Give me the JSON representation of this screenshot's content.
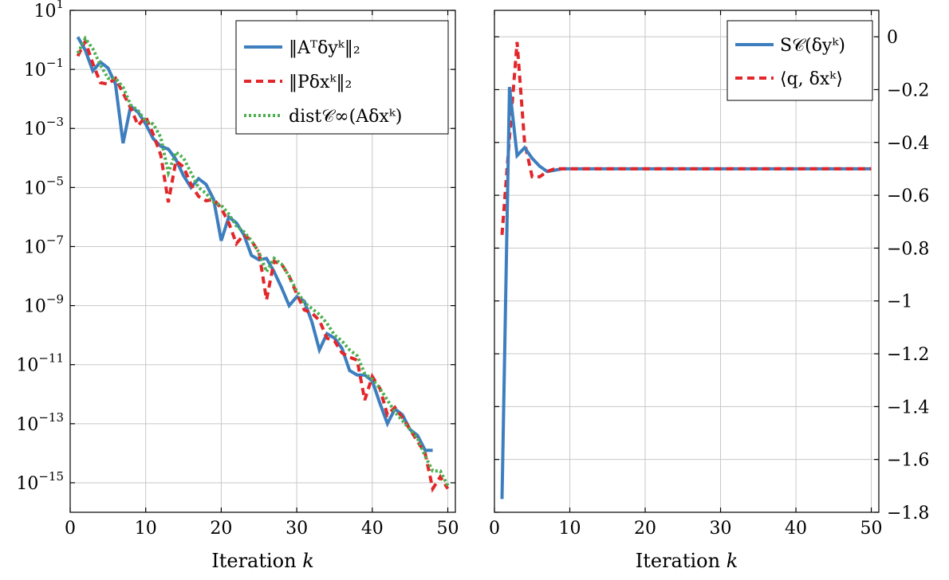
{
  "colors": {
    "blue": "#3d7ebf",
    "red": "#e3262a",
    "green": "#4cb050"
  },
  "chart_data": [
    {
      "type": "line",
      "yscale": "log",
      "xlabel": "Iteration k",
      "xlim": [
        0,
        51
      ],
      "ylim_exp": [
        -16,
        1
      ],
      "x_ticks": [
        0,
        10,
        20,
        30,
        40,
        50
      ],
      "y_tick_exponents": [
        1,
        -1,
        -3,
        -5,
        -7,
        -9,
        -11,
        -13,
        -15
      ],
      "grid": true,
      "legend_position": "top-right",
      "series": [
        {
          "name": "‖Aᵀδyᵏ‖₂",
          "color": "#3d7ebf",
          "dash": "solid",
          "x": [
            1,
            2,
            3,
            4,
            5,
            6,
            7,
            8,
            9,
            10,
            11,
            12,
            13,
            14,
            15,
            16,
            17,
            18,
            19,
            20,
            21,
            22,
            23,
            24,
            25,
            26,
            27,
            28,
            29,
            30,
            31,
            32,
            33,
            34,
            35,
            36,
            37,
            38,
            39,
            40,
            41,
            42,
            43,
            44,
            45,
            46,
            47,
            48
          ],
          "log10_y": [
            0.1,
            -0.35,
            -1.05,
            -0.75,
            -0.95,
            -1.5,
            -3.5,
            -2.25,
            -2.45,
            -2.85,
            -3.35,
            -3.6,
            -3.7,
            -4.05,
            -4.6,
            -5.0,
            -4.7,
            -4.9,
            -5.4,
            -6.8,
            -6.0,
            -6.2,
            -6.6,
            -7.3,
            -7.45,
            -7.4,
            -7.85,
            -8.4,
            -9.0,
            -8.7,
            -8.85,
            -9.55,
            -10.5,
            -9.95,
            -10.1,
            -10.45,
            -11.2,
            -11.35,
            -11.35,
            -11.55,
            -12.3,
            -13.0,
            -12.5,
            -12.7,
            -13.2,
            -13.4,
            -13.9,
            -13.9
          ]
        },
        {
          "name": "‖Pδxᵏ‖₂",
          "color": "#e3262a",
          "dash": "dashed",
          "x": [
            1,
            2,
            3,
            4,
            5,
            6,
            7,
            8,
            9,
            10,
            11,
            12,
            13,
            14,
            15,
            16,
            17,
            18,
            19,
            20,
            21,
            22,
            23,
            24,
            25,
            26,
            27,
            28,
            29,
            30,
            31,
            32,
            33,
            34,
            35,
            36,
            37,
            38,
            39,
            40,
            41,
            42,
            43,
            44,
            45,
            46,
            47,
            48,
            49,
            50
          ],
          "log10_y": [
            -0.55,
            -0.05,
            -0.8,
            -1.45,
            -1.5,
            -1.3,
            -1.8,
            -2.3,
            -2.9,
            -2.6,
            -3.2,
            -3.9,
            -5.5,
            -4.1,
            -4.3,
            -4.9,
            -5.3,
            -5.45,
            -5.4,
            -5.7,
            -6.2,
            -6.9,
            -6.6,
            -6.8,
            -7.2,
            -8.8,
            -7.5,
            -7.6,
            -8.0,
            -8.6,
            -9.15,
            -9.25,
            -9.5,
            -10.1,
            -10.2,
            -10.6,
            -10.75,
            -10.85,
            -12.2,
            -11.4,
            -11.8,
            -12.7,
            -12.45,
            -12.8,
            -13.2,
            -13.6,
            -14.0,
            -15.2,
            -14.8,
            -15.2
          ]
        },
        {
          "name": "dist𝒞∞(Aδxᵏ)",
          "color": "#4cb050",
          "dash": "dotted",
          "x": [
            1,
            2,
            3,
            4,
            5,
            6,
            7,
            8,
            9,
            10,
            11,
            12,
            13,
            14,
            15,
            16,
            17,
            18,
            19,
            20,
            21,
            22,
            23,
            24,
            25,
            26,
            27,
            28,
            29,
            30,
            31,
            32,
            33,
            34,
            35,
            36,
            37,
            38,
            39,
            40,
            41,
            42,
            43,
            44,
            45,
            46,
            47,
            48,
            49,
            50
          ],
          "log10_y": [
            -0.45,
            0.05,
            -0.3,
            -0.85,
            -1.3,
            -1.3,
            -1.6,
            -2.2,
            -2.4,
            -2.75,
            -2.85,
            -3.3,
            -4.5,
            -3.8,
            -4.0,
            -4.5,
            -5.0,
            -5.2,
            -5.5,
            -5.6,
            -5.9,
            -6.3,
            -6.5,
            -6.8,
            -7.2,
            -7.85,
            -7.4,
            -7.6,
            -8.0,
            -8.5,
            -8.9,
            -9.1,
            -9.3,
            -9.6,
            -10.0,
            -10.2,
            -10.5,
            -10.7,
            -11.3,
            -11.5,
            -11.8,
            -12.2,
            -12.6,
            -12.9,
            -13.2,
            -13.5,
            -14.1,
            -14.6,
            -14.6,
            -15.1
          ]
        }
      ]
    },
    {
      "type": "line",
      "xlabel": "Iteration k",
      "xlim": [
        0,
        51
      ],
      "ylim": [
        -1.8,
        0.1
      ],
      "x_ticks": [
        0,
        10,
        20,
        30,
        40,
        50
      ],
      "y_ticks": [
        0,
        -0.2,
        -0.4,
        -0.6,
        -0.8,
        -1,
        -1.2,
        -1.4,
        -1.6,
        -1.8
      ],
      "y_axis_side": "right",
      "grid": true,
      "legend_position": "top-right",
      "series": [
        {
          "name": "S𝒞(δyᵏ)",
          "color": "#3d7ebf",
          "dash": "solid",
          "x": [
            1,
            2,
            3,
            4,
            5,
            6,
            7,
            8,
            9,
            10,
            11,
            12,
            13,
            14,
            15,
            16,
            17,
            18,
            19,
            20,
            21,
            22,
            23,
            24,
            25,
            26,
            27,
            28,
            29,
            30,
            31,
            32,
            33,
            34,
            35,
            36,
            37,
            38,
            39,
            40,
            41,
            42,
            43,
            44,
            45,
            46,
            47,
            48,
            49,
            50
          ],
          "y": [
            -1.75,
            -0.19,
            -0.45,
            -0.42,
            -0.46,
            -0.49,
            -0.51,
            -0.505,
            -0.5,
            -0.5,
            -0.5,
            -0.5,
            -0.5,
            -0.5,
            -0.5,
            -0.5,
            -0.5,
            -0.5,
            -0.5,
            -0.5,
            -0.5,
            -0.5,
            -0.5,
            -0.5,
            -0.5,
            -0.5,
            -0.5,
            -0.5,
            -0.5,
            -0.5,
            -0.5,
            -0.5,
            -0.5,
            -0.5,
            -0.5,
            -0.5,
            -0.5,
            -0.5,
            -0.5,
            -0.5,
            -0.5,
            -0.5,
            -0.5,
            -0.5,
            -0.5,
            -0.5,
            -0.5,
            -0.5,
            -0.5,
            -0.5
          ]
        },
        {
          "name": "⟨q, δxᵏ⟩",
          "color": "#e3262a",
          "dash": "dashed",
          "x": [
            1,
            2,
            3,
            4,
            5,
            6,
            7,
            8,
            9,
            10,
            11,
            12,
            13,
            14,
            15,
            16,
            17,
            18,
            19,
            20,
            21,
            22,
            23,
            24,
            25,
            26,
            27,
            28,
            29,
            30,
            31,
            32,
            33,
            34,
            35,
            36,
            37,
            38,
            39,
            40,
            41,
            42,
            43,
            44,
            45,
            46,
            47,
            48,
            49,
            50
          ],
          "y": [
            -0.75,
            -0.38,
            -0.02,
            -0.4,
            -0.53,
            -0.53,
            -0.51,
            -0.5,
            -0.5,
            -0.5,
            -0.5,
            -0.5,
            -0.5,
            -0.5,
            -0.5,
            -0.5,
            -0.5,
            -0.5,
            -0.5,
            -0.5,
            -0.5,
            -0.5,
            -0.5,
            -0.5,
            -0.5,
            -0.5,
            -0.5,
            -0.5,
            -0.5,
            -0.5,
            -0.5,
            -0.5,
            -0.5,
            -0.5,
            -0.5,
            -0.5,
            -0.5,
            -0.5,
            -0.5,
            -0.5,
            -0.5,
            -0.5,
            -0.5,
            -0.5,
            -0.5,
            -0.5,
            -0.5,
            -0.5,
            -0.5,
            -0.5
          ]
        }
      ]
    }
  ]
}
